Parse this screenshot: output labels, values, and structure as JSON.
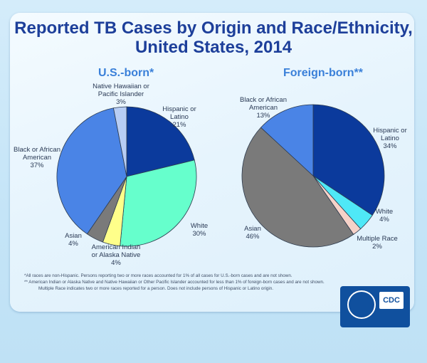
{
  "title_line1": "Reported TB Cases by Origin and Race/Ethnicity,",
  "title_line2": "United States, 2014",
  "chart_data": [
    {
      "type": "pie",
      "title": "U.S.-born*",
      "slices": [
        {
          "label": [
            "Hispanic or",
            "Latino"
          ],
          "value": 21,
          "display": "21%",
          "color": "#0b3a9c"
        },
        {
          "label": [
            "White"
          ],
          "value": 30,
          "display": "30%",
          "color": "#66ffcc"
        },
        {
          "label": [
            "American Indian",
            "or Alaska Native"
          ],
          "value": 4,
          "display": "4%",
          "color": "#ffff8a"
        },
        {
          "label": [
            "Asian"
          ],
          "value": 4,
          "display": "4%",
          "color": "#7a7a7a"
        },
        {
          "label": [
            "Black or African",
            "American"
          ],
          "value": 37,
          "display": "37%",
          "color": "#4a84e6"
        },
        {
          "label": [
            "Native Hawaiian or",
            "Pacific Islander"
          ],
          "value": 3,
          "display": "3%",
          "color": "#b7cdf4"
        }
      ]
    },
    {
      "type": "pie",
      "title": "Foreign-born**",
      "slices": [
        {
          "label": [
            "Hispanic or",
            "Latino"
          ],
          "value": 34,
          "display": "34%",
          "color": "#0b3a9c"
        },
        {
          "label": [
            "White"
          ],
          "value": 4,
          "display": "4%",
          "color": "#4fe8f7"
        },
        {
          "label": [
            "Multiple Race"
          ],
          "value": 2,
          "display": "2%",
          "color": "#f6d2c8"
        },
        {
          "label": [
            "Asian"
          ],
          "value": 46,
          "display": "46%",
          "color": "#7a7a7a"
        },
        {
          "label": [
            "Black or African",
            "American"
          ],
          "value": 13,
          "display": "13%",
          "color": "#4a84e6"
        }
      ]
    }
  ],
  "footnotes": [
    "*All races are non-Hispanic. Persons reporting two or more races accounted for 1% of all cases for U.S.-born cases and are not shown.",
    "** American Indian or Alaska Native and Native Hawaiian or Other Pacific Islander accounted for less than 1% of foreign-born cases and are not shown.  Multiple Race indicates two or more races reported for a person. Does not include persons of Hispanic or Latino origin."
  ],
  "logo_text": "CDC"
}
